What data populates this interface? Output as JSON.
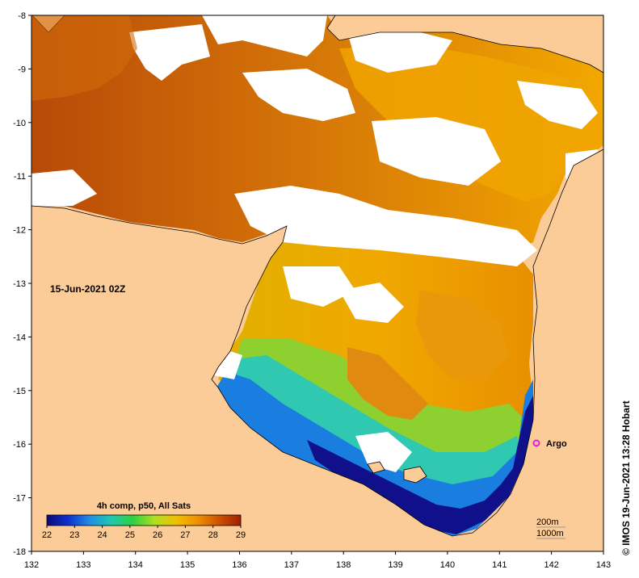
{
  "map": {
    "date_label": "15-Jun-2021 02Z",
    "credit": "© IMOS 19-Jun-2021 13:28 Hobart",
    "colorbar_title": "4h comp, p50, All Sats",
    "colorbar_ticks": [
      "22",
      "23",
      "24",
      "25",
      "26",
      "27",
      "28",
      "29"
    ],
    "colorbar_stops": [
      "#0a0a7a",
      "#1030d0",
      "#1f8fe0",
      "#20c8b0",
      "#30d040",
      "#b0e020",
      "#f0c000",
      "#f09000",
      "#d05000",
      "#a02000"
    ],
    "x_ticks": [
      "132",
      "133",
      "134",
      "135",
      "136",
      "137",
      "138",
      "139",
      "140",
      "141",
      "142",
      "143"
    ],
    "y_ticks": [
      "-8",
      "-9",
      "-10",
      "-11",
      "-12",
      "-13",
      "-14",
      "-15",
      "-16",
      "-17",
      "-18"
    ],
    "marker_label": "Argo",
    "marker_color": "#e020e0",
    "depth_contours": [
      "200m",
      "1000m"
    ],
    "land_color": "#fccc98",
    "nodata_color": "#ffffff"
  }
}
